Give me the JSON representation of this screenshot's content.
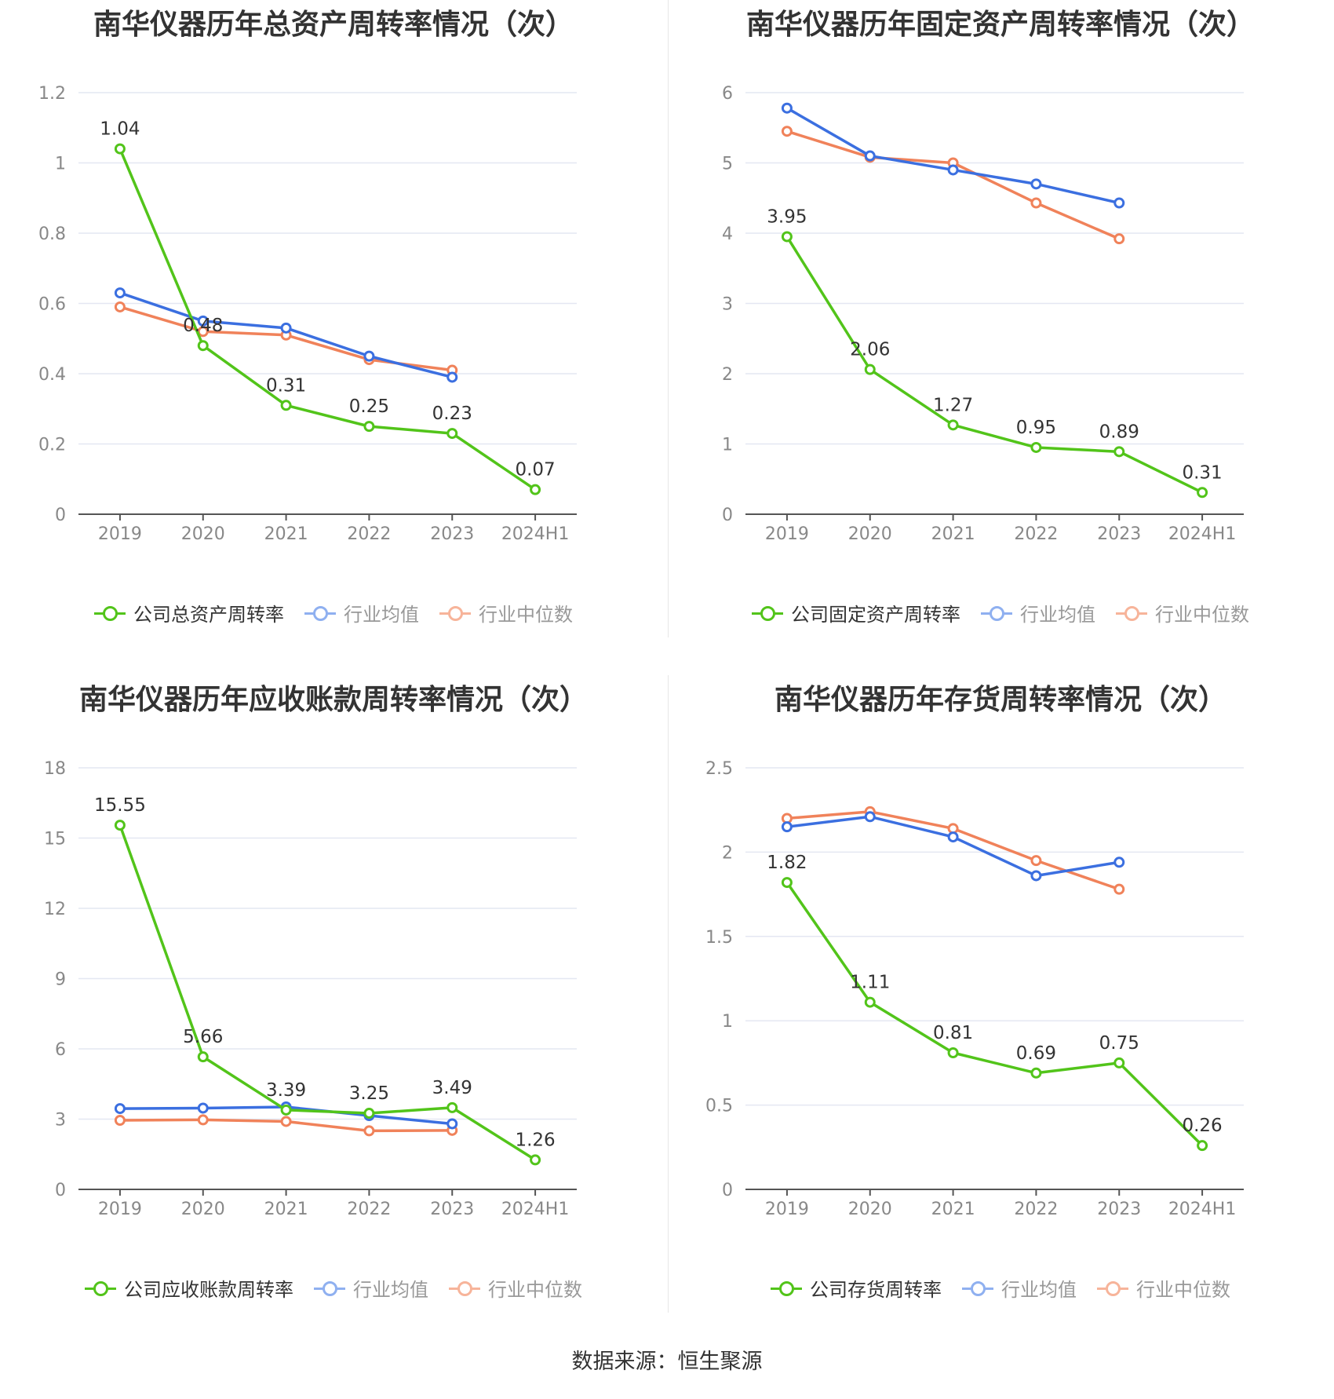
{
  "source": "数据来源：恒生聚源",
  "colors": {
    "company": "#52c41a",
    "avg": "#3b6fe0",
    "median": "#f0825a",
    "grid": "#e4e7f2",
    "axis": "#555555",
    "tick": "#888888"
  },
  "chart_data": [
    {
      "type": "line",
      "title": "南华仪器历年总资产周转率情况（次）",
      "categories": [
        "2019",
        "2020",
        "2021",
        "2022",
        "2023",
        "2024H1"
      ],
      "yticks": [
        "0",
        "0.2",
        "0.4",
        "0.6",
        "0.8",
        "1",
        "1.2"
      ],
      "ylim": [
        0,
        1.2
      ],
      "series": [
        {
          "name": "公司总资产周转率",
          "values": [
            1.04,
            0.48,
            0.31,
            0.25,
            0.23,
            0.07
          ],
          "labels": [
            "1.04",
            "0.48",
            "0.31",
            "0.25",
            "0.23",
            "0.07"
          ]
        },
        {
          "name": "行业均值",
          "values": [
            0.63,
            0.55,
            0.53,
            0.45,
            0.39,
            null
          ]
        },
        {
          "name": "行业中位数",
          "values": [
            0.59,
            0.52,
            0.51,
            0.44,
            0.41,
            null
          ]
        }
      ]
    },
    {
      "type": "line",
      "title": "南华仪器历年固定资产周转率情况（次）",
      "categories": [
        "2019",
        "2020",
        "2021",
        "2022",
        "2023",
        "2024H1"
      ],
      "yticks": [
        "0",
        "1",
        "2",
        "3",
        "4",
        "5",
        "6"
      ],
      "ylim": [
        0,
        6
      ],
      "series": [
        {
          "name": "公司固定资产周转率",
          "values": [
            3.95,
            2.06,
            1.27,
            0.95,
            0.89,
            0.31
          ],
          "labels": [
            "3.95",
            "2.06",
            "1.27",
            "0.95",
            "0.89",
            "0.31"
          ]
        },
        {
          "name": "行业均值",
          "values": [
            5.78,
            5.1,
            4.9,
            4.7,
            4.43,
            null
          ]
        },
        {
          "name": "行业中位数",
          "values": [
            5.45,
            5.08,
            5.0,
            4.43,
            3.92,
            null
          ]
        }
      ]
    },
    {
      "type": "line",
      "title": "南华仪器历年应收账款周转率情况（次）",
      "categories": [
        "2019",
        "2020",
        "2021",
        "2022",
        "2023",
        "2024H1"
      ],
      "yticks": [
        "0",
        "3",
        "6",
        "9",
        "12",
        "15",
        "18"
      ],
      "ylim": [
        0,
        18
      ],
      "series": [
        {
          "name": "公司应收账款周转率",
          "values": [
            15.55,
            5.66,
            3.39,
            3.25,
            3.49,
            1.26
          ],
          "labels": [
            "15.55",
            "5.66",
            "3.39",
            "3.25",
            "3.49",
            "1.26"
          ]
        },
        {
          "name": "行业均值",
          "values": [
            3.45,
            3.47,
            3.52,
            3.15,
            2.8,
            null
          ]
        },
        {
          "name": "行业中位数",
          "values": [
            2.95,
            2.97,
            2.9,
            2.5,
            2.52,
            null
          ]
        }
      ]
    },
    {
      "type": "line",
      "title": "南华仪器历年存货周转率情况（次）",
      "categories": [
        "2019",
        "2020",
        "2021",
        "2022",
        "2023",
        "2024H1"
      ],
      "yticks": [
        "0",
        "0.5",
        "1",
        "1.5",
        "2",
        "2.5"
      ],
      "ylim": [
        0,
        2.5
      ],
      "series": [
        {
          "name": "公司存货周转率",
          "values": [
            1.82,
            1.11,
            0.81,
            0.69,
            0.75,
            0.26
          ],
          "labels": [
            "1.82",
            "1.11",
            "0.81",
            "0.69",
            "0.75",
            "0.26"
          ]
        },
        {
          "name": "行业均值",
          "values": [
            2.15,
            2.21,
            2.09,
            1.86,
            1.94,
            null
          ]
        },
        {
          "name": "行业中位数",
          "values": [
            2.2,
            2.24,
            2.14,
            1.95,
            1.78,
            null
          ]
        }
      ]
    }
  ]
}
